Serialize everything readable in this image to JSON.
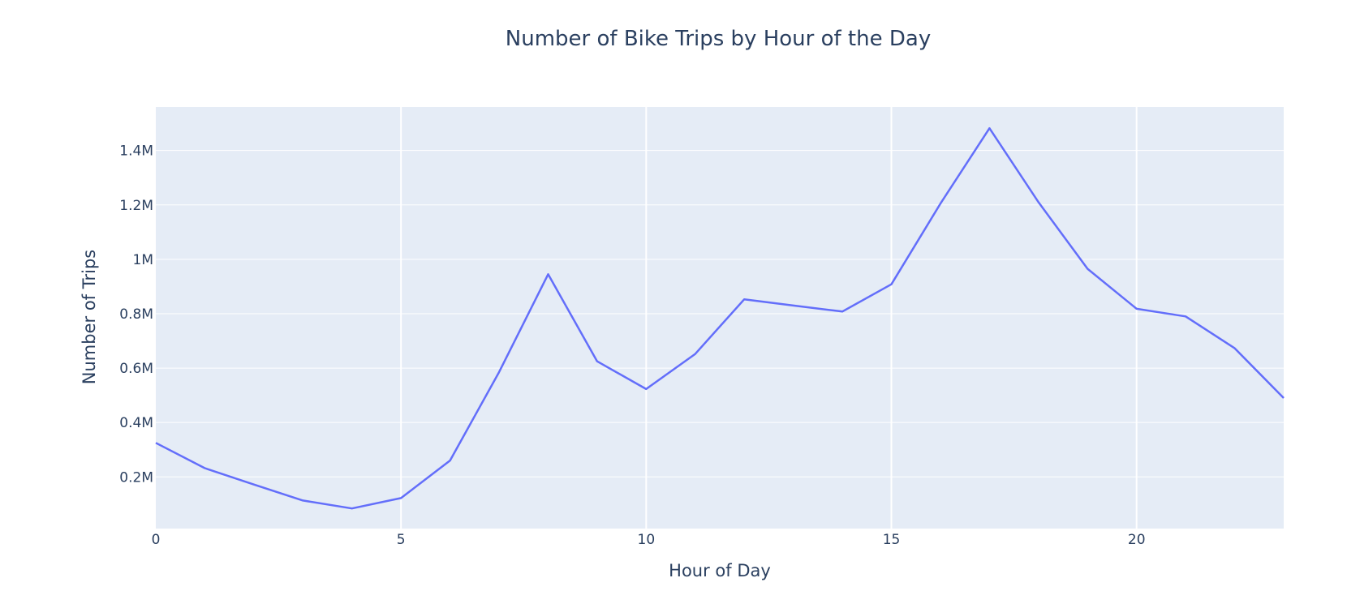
{
  "chart_data": {
    "type": "line",
    "title": "Number of Bike Trips by Hour of the Day",
    "xlabel": "Hour of Day",
    "ylabel": "Number of Trips",
    "xlim": [
      0,
      23
    ],
    "ylim": [
      10000,
      1560000
    ],
    "x_ticks": [
      0,
      5,
      10,
      15,
      20
    ],
    "x_tick_labels": [
      "0",
      "5",
      "10",
      "15",
      "20"
    ],
    "y_ticks": [
      200000,
      400000,
      600000,
      800000,
      1000000,
      1200000,
      1400000
    ],
    "y_tick_labels": [
      "0.2M",
      "0.4M",
      "0.6M",
      "0.8M",
      "1M",
      "1.2M",
      "1.4M"
    ],
    "grid": true,
    "legend": false,
    "series": [
      {
        "color": "#636efa",
        "x": [
          0,
          1,
          2,
          3,
          4,
          5,
          6,
          7,
          8,
          9,
          10,
          11,
          12,
          13,
          14,
          15,
          16,
          17,
          18,
          19,
          20,
          21,
          22,
          23
        ],
        "y": [
          325000,
          232000,
          172000,
          113000,
          84000,
          122000,
          260000,
          585000,
          945000,
          625000,
          523000,
          652000,
          853000,
          830000,
          808000,
          908000,
          1205000,
          1482000,
          1210000,
          965000,
          818000,
          790000,
          673000,
          490000
        ]
      }
    ]
  },
  "style": {
    "plot_bg": "#e5ecf6",
    "grid_color": "#ffffff",
    "text_color": "#2a3f5f",
    "line_color": "#636efa"
  }
}
